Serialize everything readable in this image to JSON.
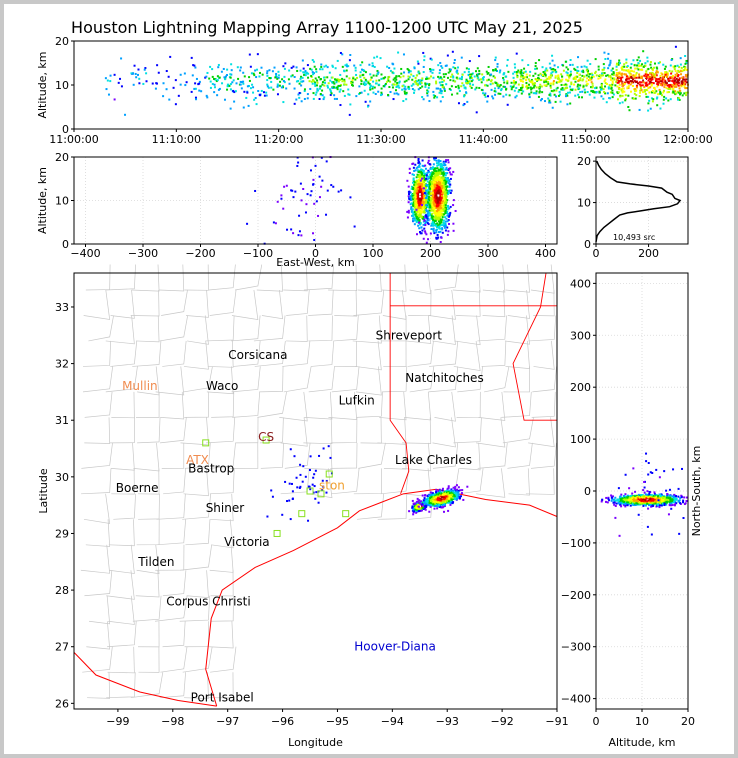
{
  "title": "Houston Lightning Mapping Array 1100-1200 UTC May 21, 2025",
  "colors": {
    "density_scale": [
      "#7a00ff",
      "#0000ff",
      "#00a0ff",
      "#00e0e0",
      "#00d000",
      "#b0ff00",
      "#ffff00",
      "#ffa000",
      "#ff0000",
      "#b00000",
      "#ffffff"
    ],
    "boundary": "#c8c8c8",
    "coast": "#ff0000",
    "grid": "#d8d8d8",
    "histogram": "#000000"
  },
  "chart_data": [
    {
      "id": "time_altitude",
      "type": "scatter",
      "xlabel": "",
      "ylabel": "Altitude, km",
      "xlim": [
        "11:00:00",
        "12:00:00"
      ],
      "ylim": [
        0,
        20
      ],
      "x_ticks": [
        "11:00:00",
        "11:10:00",
        "11:20:00",
        "11:30:00",
        "11:40:00",
        "11:50:00",
        "12:00:00"
      ],
      "y_ticks": [
        "0",
        "10",
        "20"
      ],
      "density_by_10min": [
        0.08,
        0.22,
        0.35,
        0.35,
        0.5,
        0.85
      ],
      "altitude_center_km": 11,
      "grid": false
    },
    {
      "id": "ew_altitude",
      "type": "scatter",
      "xlabel": "East-West, km",
      "ylabel": "Altitude, km",
      "xlim": [
        -420,
        420
      ],
      "ylim": [
        0,
        20
      ],
      "x_ticks": [
        "−400",
        "−300",
        "−200",
        "−100",
        "0",
        "100",
        "200",
        "300",
        "400"
      ],
      "y_ticks": [
        "0",
        "10",
        "20"
      ],
      "clusters": [
        {
          "x": 182,
          "alt": 11,
          "sx": 8,
          "salt": 3.5,
          "n": 700
        },
        {
          "x": 213,
          "alt": 11,
          "sx": 10,
          "salt": 4,
          "n": 1000
        },
        {
          "x": -20,
          "alt": 12,
          "sx": 35,
          "salt": 5,
          "n": 60
        }
      ],
      "grid": true
    },
    {
      "id": "altitude_histogram",
      "type": "line",
      "xlabel": "",
      "ylabel": "",
      "xlim": [
        0,
        350
      ],
      "ylim": [
        0,
        21
      ],
      "x_ticks": [
        "0",
        "200"
      ],
      "y_ticks": [
        "0",
        "10",
        "20"
      ],
      "annotation": "10,493 src",
      "series": [
        {
          "values": [
            [
              0,
              0.5
            ],
            [
              4,
              2
            ],
            [
              15,
              3
            ],
            [
              30,
              4
            ],
            [
              50,
              5
            ],
            [
              70,
              6
            ],
            [
              90,
              7
            ],
            [
              120,
              7.5
            ],
            [
              170,
              8
            ],
            [
              220,
              8.5
            ],
            [
              280,
              9
            ],
            [
              310,
              9.7
            ],
            [
              320,
              10.5
            ],
            [
              300,
              11
            ],
            [
              290,
              12
            ],
            [
              270,
              12.5
            ],
            [
              250,
              13.5
            ],
            [
              200,
              14
            ],
            [
              130,
              14.5
            ],
            [
              80,
              15
            ],
            [
              55,
              16
            ],
            [
              35,
              17
            ],
            [
              20,
              18
            ],
            [
              10,
              19
            ],
            [
              3,
              20
            ]
          ]
        }
      ],
      "grid": true
    },
    {
      "id": "plan_view_map",
      "type": "scatter",
      "xlabel": "Longitude",
      "ylabel": "Latitude",
      "xlim": [
        -99.8,
        -91
      ],
      "ylim": [
        25.9,
        33.6
      ],
      "x_ticks": [
        "−99",
        "−98",
        "−97",
        "−96",
        "−95",
        "−94",
        "−93",
        "−92",
        "−91"
      ],
      "y_ticks": [
        "26",
        "27",
        "28",
        "29",
        "30",
        "31",
        "32",
        "33"
      ],
      "clusters": [
        {
          "lon": -93.5,
          "lat": 29.48,
          "slon": 0.06,
          "slat": 0.035,
          "n": 350
        },
        {
          "lon": -93.1,
          "lat": 29.62,
          "slon": 0.15,
          "slat": 0.06,
          "n": 800
        },
        {
          "lon": -95.6,
          "lat": 29.8,
          "slon": 0.28,
          "slat": 0.3,
          "n": 50
        }
      ],
      "cities": [
        {
          "name": "Shreveport",
          "lon": -93.7,
          "lat": 32.5,
          "color": "#000000"
        },
        {
          "name": "Corsicana",
          "lon": -96.45,
          "lat": 32.15,
          "color": "#000000"
        },
        {
          "name": "Natchitoches",
          "lon": -93.05,
          "lat": 31.75,
          "color": "#000000"
        },
        {
          "name": "Mullin",
          "lon": -98.6,
          "lat": 31.6,
          "color": "#f08c50"
        },
        {
          "name": "Waco",
          "lon": -97.1,
          "lat": 31.6,
          "color": "#000000"
        },
        {
          "name": "Lufkin",
          "lon": -94.65,
          "lat": 31.35,
          "color": "#000000"
        },
        {
          "name": "CS",
          "lon": -96.3,
          "lat": 30.7,
          "color": "#8b2020"
        },
        {
          "name": "ATX",
          "lon": -97.55,
          "lat": 30.3,
          "color": "#f08c50"
        },
        {
          "name": "Bastrop",
          "lon": -97.3,
          "lat": 30.15,
          "color": "#000000"
        },
        {
          "name": "Lake Charles",
          "lon": -93.25,
          "lat": 30.3,
          "color": "#000000"
        },
        {
          "name": "Boerne",
          "lon": -98.65,
          "lat": 29.8,
          "color": "#000000"
        },
        {
          "name": "ston",
          "lon": -95.1,
          "lat": 29.85,
          "color": "#f0a030"
        },
        {
          "name": "Shiner",
          "lon": -97.05,
          "lat": 29.45,
          "color": "#000000"
        },
        {
          "name": "Victoria",
          "lon": -96.65,
          "lat": 28.85,
          "color": "#000000"
        },
        {
          "name": "Tilden",
          "lon": -98.3,
          "lat": 28.5,
          "color": "#000000"
        },
        {
          "name": "Corpus Christi",
          "lon": -97.35,
          "lat": 27.8,
          "color": "#000000"
        },
        {
          "name": "Hoover-Diana",
          "lon": -93.95,
          "lat": 27.0,
          "color": "#0000d0"
        },
        {
          "name": "Port Isabel",
          "lon": -97.1,
          "lat": 26.1,
          "color": "#000000"
        }
      ],
      "stations": [
        {
          "lon": -97.4,
          "lat": 30.6
        },
        {
          "lon": -96.3,
          "lat": 30.65
        },
        {
          "lon": -95.5,
          "lat": 29.75
        },
        {
          "lon": -95.15,
          "lat": 30.05
        },
        {
          "lon": -94.85,
          "lat": 29.35
        },
        {
          "lon": -95.65,
          "lat": 29.35
        },
        {
          "lon": -95.3,
          "lat": 29.7
        },
        {
          "lon": -96.1,
          "lat": 29.0
        }
      ],
      "grid": false
    },
    {
      "id": "altitude_ns",
      "type": "scatter",
      "xlabel": "Altitude, km",
      "ylabel": "North-South, km",
      "xlim": [
        0,
        20
      ],
      "ylim": [
        -420,
        420
      ],
      "x_ticks": [
        "0",
        "10",
        "20"
      ],
      "y_ticks": [
        "−400",
        "−300",
        "−200",
        "−100",
        "0",
        "100",
        "200",
        "300",
        "400"
      ],
      "clusters": [
        {
          "alt": 11,
          "ns": -17,
          "salt": 3.5,
          "sns": 5,
          "n": 900
        },
        {
          "alt": 12,
          "ns": 0,
          "salt": 5,
          "sns": 40,
          "n": 40
        }
      ],
      "grid": true
    }
  ]
}
